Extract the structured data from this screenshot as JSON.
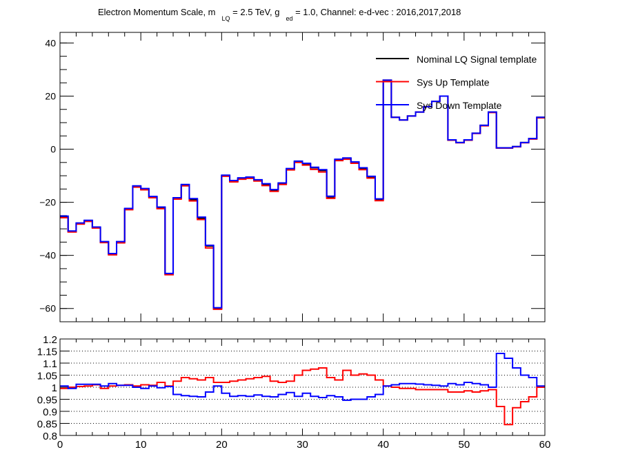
{
  "title": {
    "t1": "Electron Momentum Scale, m",
    "s1": "LQ",
    "t2": " = 2.5 TeV, g",
    "s2": "ed",
    "t3": " = 1.0, Channel: e-d-vec : 2016,2017,2018"
  },
  "colors": {
    "nominal": "#000000",
    "up": "#ff0000",
    "down": "#0000ff",
    "frame": "#000000"
  },
  "chart_data": [
    {
      "type": "line",
      "step": true,
      "bin_edges": [
        0,
        1,
        2,
        3,
        4,
        5,
        6,
        7,
        8,
        9,
        10,
        11,
        12,
        13,
        14,
        15,
        16,
        17,
        18,
        19,
        20,
        21,
        22,
        23,
        24,
        25,
        26,
        27,
        28,
        29,
        30,
        31,
        32,
        33,
        34,
        35,
        36,
        37,
        38,
        39,
        40,
        41,
        42,
        43,
        44,
        45,
        46,
        47,
        48,
        49,
        50,
        51,
        52,
        53,
        54,
        55,
        56,
        57,
        58,
        59,
        60
      ],
      "xlim": [
        0,
        60
      ],
      "ylim": [
        -65,
        44
      ],
      "y_ticks": [
        -60,
        -40,
        -20,
        0,
        20,
        40
      ],
      "y_tick_labels": [
        "−60",
        "−40",
        "−20",
        "0",
        "20",
        "40"
      ],
      "legend": {
        "position": "top-right",
        "entries": [
          "Nominal LQ Signal template",
          "Sys Up Template",
          "Sys Down Template"
        ]
      },
      "series": [
        {
          "name": "Nominal LQ Signal template",
          "values": [
            -25.5,
            -31,
            -28,
            -27,
            -29.5,
            -35,
            -39.5,
            -35,
            -22.5,
            -14,
            -15,
            -18,
            -22,
            -47,
            -18.5,
            -13.5,
            -19,
            -26,
            -36.5,
            -60,
            -10,
            -12,
            -11,
            -10.7,
            -11.7,
            -13.3,
            -15.5,
            -13,
            -7.5,
            -4.7,
            -5.5,
            -7,
            -8,
            -18,
            -4,
            -3.5,
            -5,
            -7.3,
            -10.5,
            -19,
            26,
            12,
            11,
            12.5,
            14,
            16,
            18,
            20,
            3.5,
            2.5,
            3.5,
            6,
            9,
            14,
            0.5,
            0.5,
            1,
            2.5,
            4,
            12
          ]
        },
        {
          "name": "Sys Up Template",
          "values": [
            -25.8,
            -31.2,
            -28.2,
            -27.2,
            -29.7,
            -35.2,
            -39.8,
            -35.3,
            -22.8,
            -14.3,
            -15.3,
            -18.3,
            -22.4,
            -47.3,
            -18.8,
            -13.8,
            -19.5,
            -26.5,
            -37.2,
            -60.3,
            -10.2,
            -12.3,
            -11.3,
            -11,
            -12,
            -13.7,
            -15.9,
            -13.3,
            -7.8,
            -5,
            -6,
            -7.6,
            -8.6,
            -18.5,
            -4.3,
            -3.8,
            -5.3,
            -7.7,
            -10.9,
            -19.4,
            26,
            12,
            11,
            12.5,
            14,
            16,
            18,
            20,
            3.4,
            2.4,
            3.4,
            5.9,
            8.8,
            13.8,
            0.4,
            0.4,
            0.9,
            2.4,
            3.8,
            11.8
          ]
        },
        {
          "name": "Sys Down Template",
          "values": [
            -25.2,
            -30.8,
            -27.8,
            -26.8,
            -29.3,
            -34.8,
            -39.3,
            -34.8,
            -22.3,
            -13.8,
            -14.8,
            -17.8,
            -21.8,
            -46.8,
            -18.3,
            -13.3,
            -18.6,
            -25.6,
            -36.2,
            -59.7,
            -9.8,
            -11.8,
            -10.8,
            -10.5,
            -11.5,
            -13,
            -15.2,
            -12.7,
            -7.3,
            -4.5,
            -5.3,
            -6.8,
            -7.7,
            -17.7,
            -3.8,
            -3.3,
            -4.8,
            -7,
            -10.2,
            -18.7,
            26,
            12,
            11,
            12.5,
            14,
            16,
            18,
            20,
            3.5,
            2.5,
            3.5,
            6,
            9,
            14,
            0.5,
            0.5,
            1,
            2.5,
            4,
            12
          ]
        }
      ]
    },
    {
      "type": "line",
      "step": true,
      "xlim": [
        0,
        60
      ],
      "ylim": [
        0.8,
        1.2
      ],
      "x_ticks": [
        0,
        10,
        20,
        30,
        40,
        50,
        60
      ],
      "x_tick_labels": [
        "0",
        "10",
        "20",
        "30",
        "40",
        "50",
        "60"
      ],
      "y_ticks": [
        0.8,
        0.85,
        0.9,
        0.95,
        1,
        1.05,
        1.1,
        1.15,
        1.2
      ],
      "y_tick_labels": [
        "0.8",
        "0.85",
        "0.9",
        "0.95",
        "1",
        "1.05",
        "1.1",
        "1.15",
        "1.2"
      ],
      "grid_y": true,
      "series": [
        {
          "name": "Sys Up Template",
          "values": [
            0.995,
            1.0,
            1.003,
            1.005,
            1.01,
            0.995,
            1.005,
            1.008,
            1.01,
            1.005,
            1.01,
            1.008,
            1.02,
            1.005,
            1.025,
            1.04,
            1.035,
            1.03,
            1.04,
            1.02,
            1.02,
            1.025,
            1.03,
            1.035,
            1.04,
            1.045,
            1.025,
            1.02,
            1.025,
            1.05,
            1.07,
            1.075,
            1.08,
            1.04,
            1.03,
            1.07,
            1.05,
            1.055,
            1.05,
            1.03,
            1.005,
            1.0,
            0.995,
            0.995,
            0.99,
            0.99,
            0.99,
            0.99,
            0.98,
            0.98,
            0.985,
            0.98,
            0.985,
            0.99,
            0.92,
            0.845,
            0.915,
            0.94,
            0.96,
            1.0
          ]
        },
        {
          "name": "Sys Down Template",
          "values": [
            1.005,
            0.995,
            1.012,
            1.012,
            1.012,
            1.005,
            1.015,
            1.008,
            1.008,
            1.0,
            0.995,
            1.005,
            0.998,
            1.003,
            0.97,
            0.965,
            0.962,
            0.96,
            0.98,
            1.005,
            0.975,
            0.962,
            0.965,
            0.962,
            0.968,
            0.962,
            0.96,
            0.97,
            0.978,
            0.962,
            0.975,
            0.962,
            0.957,
            0.965,
            0.96,
            0.946,
            0.95,
            0.95,
            0.96,
            0.97,
            1.005,
            1.01,
            1.015,
            1.015,
            1.013,
            1.01,
            1.008,
            1.005,
            1.015,
            1.01,
            1.02,
            1.015,
            1.01,
            1.0,
            1.14,
            1.12,
            1.08,
            1.05,
            1.04,
            1.005
          ]
        }
      ]
    }
  ]
}
